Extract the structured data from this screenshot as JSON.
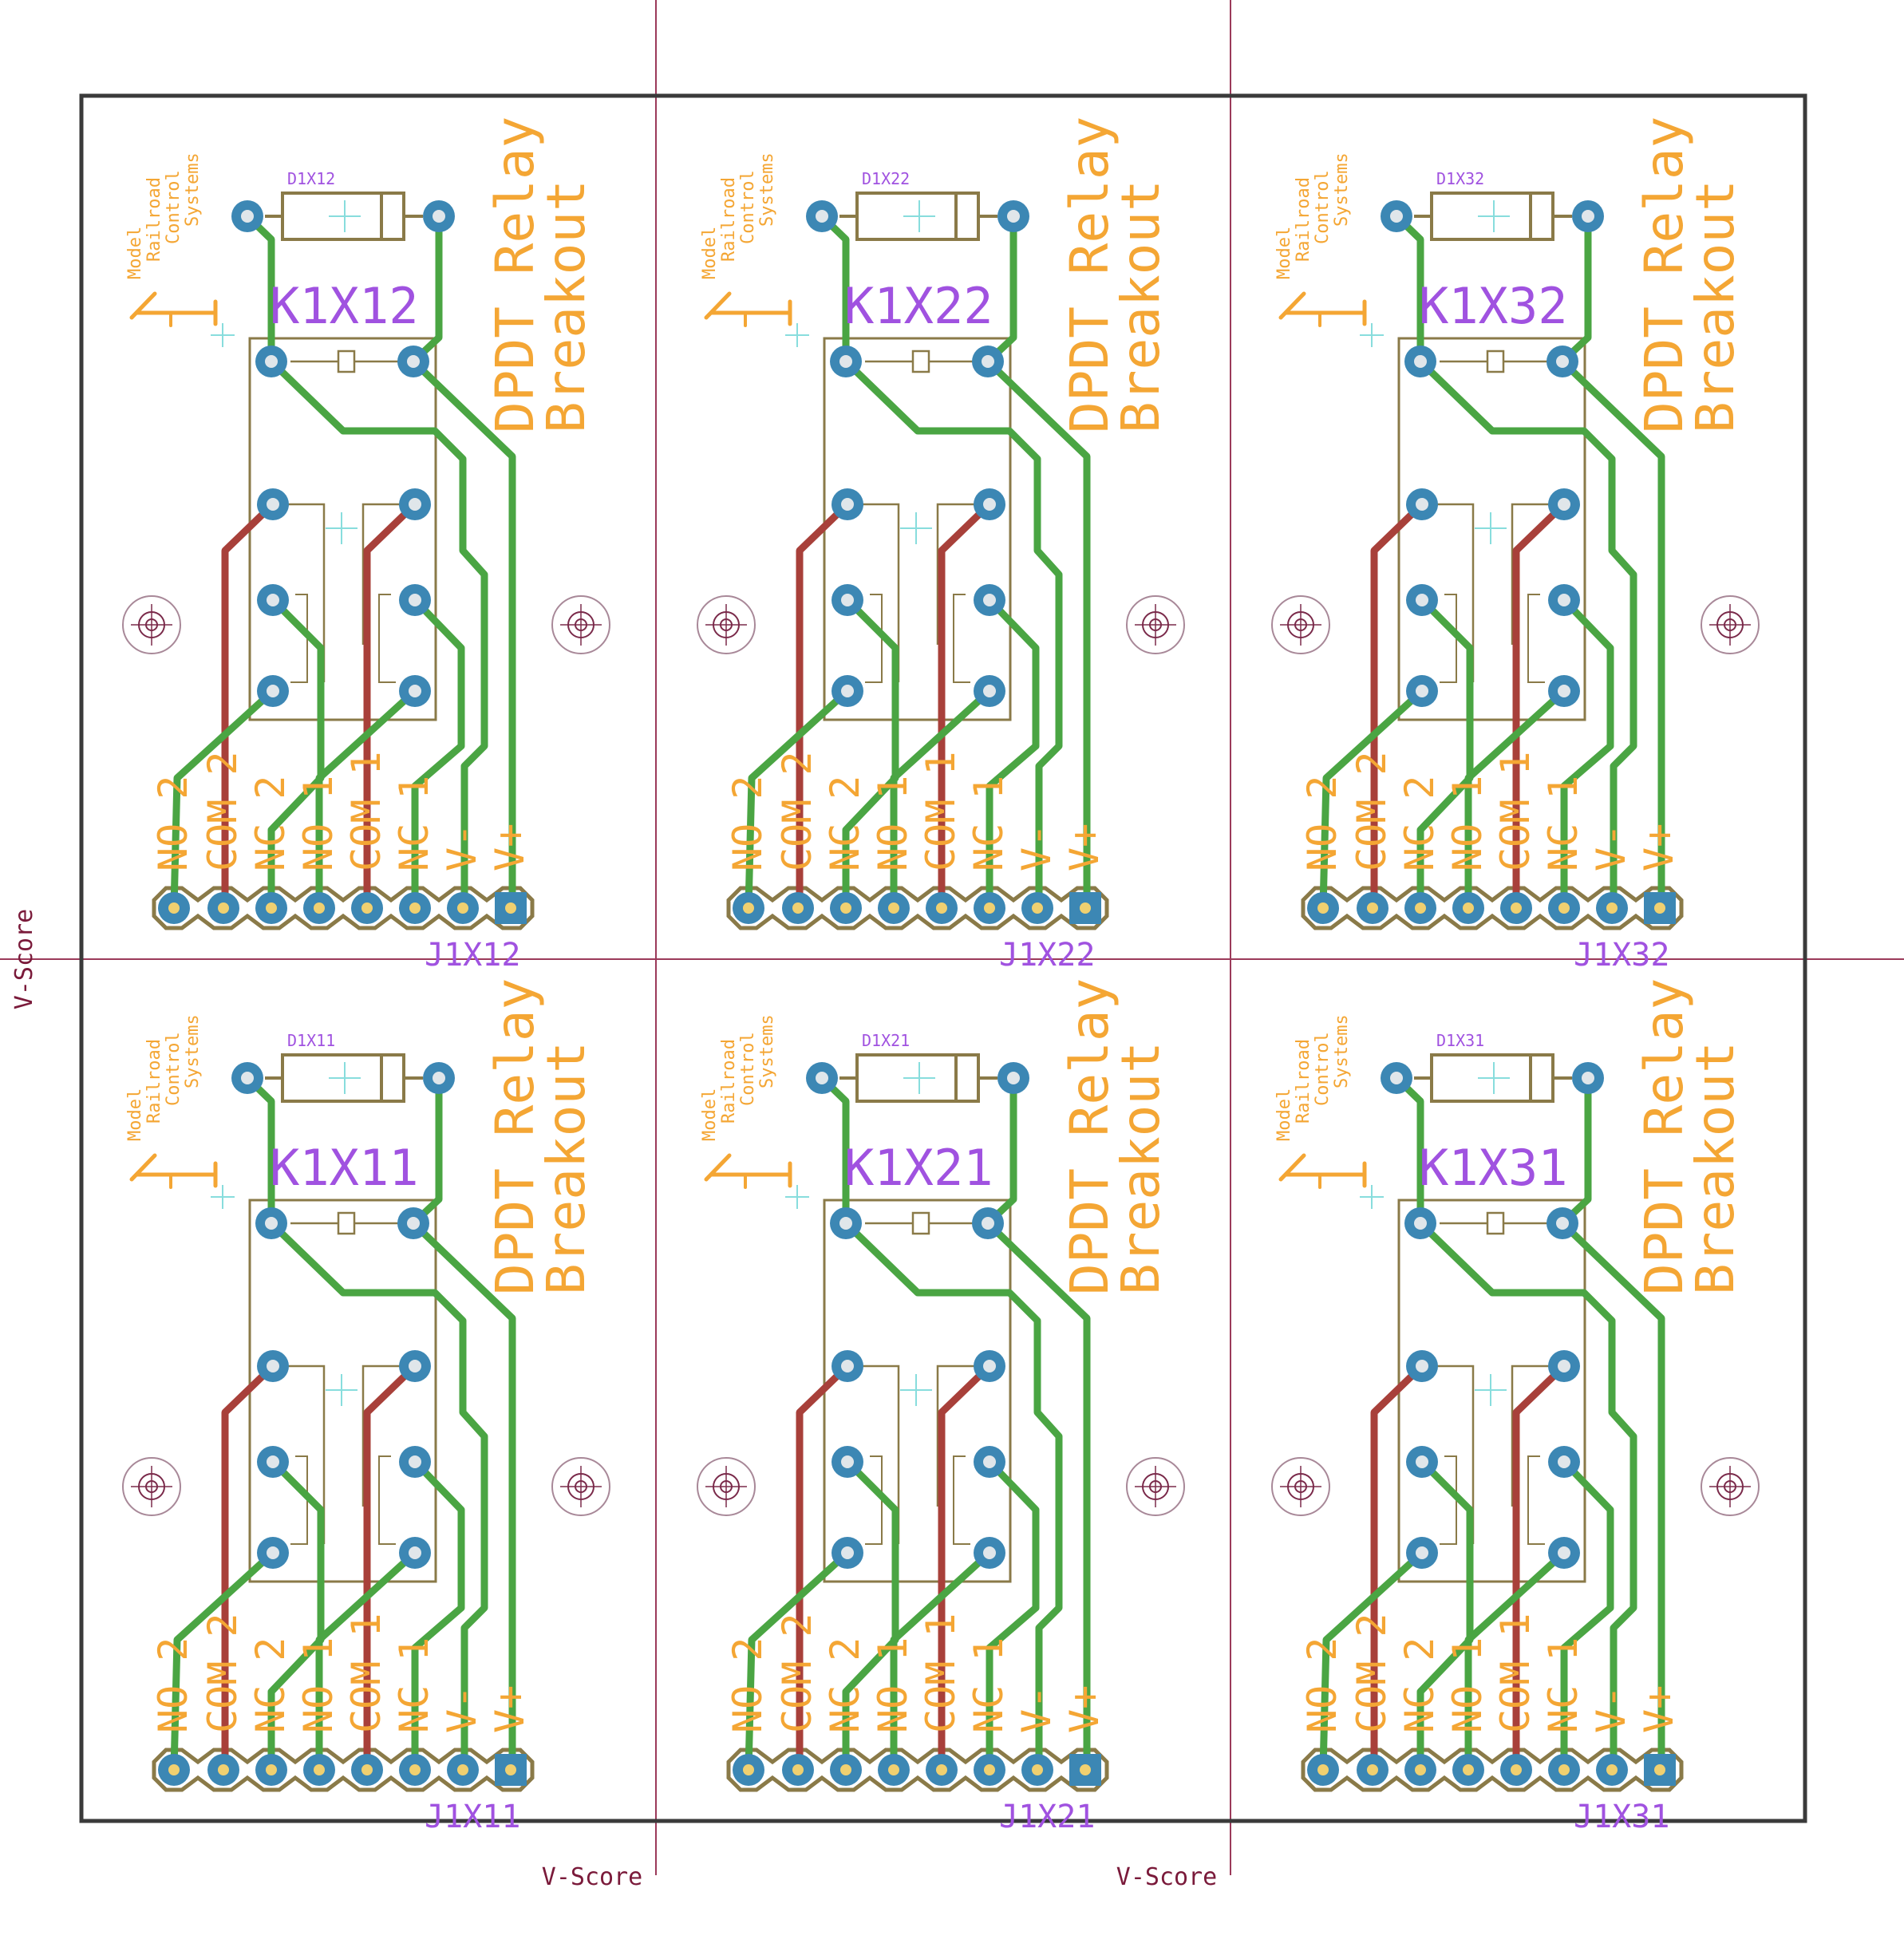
{
  "colors": {
    "background": "#ffffff",
    "outline": "#3a3a3a",
    "vscore_line": "#9b3a5a",
    "vscore_text": "#7a1a3a",
    "silk_orange": "#f4a634",
    "name_purple": "#a052e0",
    "footprint": "#8a7a48",
    "pad": "#3c87b4",
    "drill": "#f0d070",
    "trace_bottom": "#4aa543",
    "trace_top": "#a8403a",
    "hole": "#a88898",
    "origin_cross": "#88dddd"
  },
  "vscore": {
    "left_label": "V-Score",
    "bottom_label_1": "V-Score",
    "bottom_label_2": "V-Score"
  },
  "board_title": {
    "line1": "DPDT Relay",
    "line2": "Breakout"
  },
  "logo_text": [
    "Model",
    "Railroad",
    "Control",
    "Systems"
  ],
  "pin_labels": [
    "NO 2",
    "COM 2",
    "NC 2",
    "NO 1",
    "COM 1",
    "NC 1",
    "V-",
    "V+"
  ],
  "modules": [
    {
      "relay": "K1X12",
      "diode": "D1X12",
      "header": "J1X12"
    },
    {
      "relay": "K1X22",
      "diode": "D1X22",
      "header": "J1X22"
    },
    {
      "relay": "K1X32",
      "diode": "D1X32",
      "header": "J1X32"
    },
    {
      "relay": "K1X11",
      "diode": "D1X11",
      "header": "J1X11"
    },
    {
      "relay": "K1X21",
      "diode": "D1X21",
      "header": "J1X21"
    },
    {
      "relay": "K1X31",
      "diode": "D1X31",
      "header": "J1X31"
    }
  ]
}
